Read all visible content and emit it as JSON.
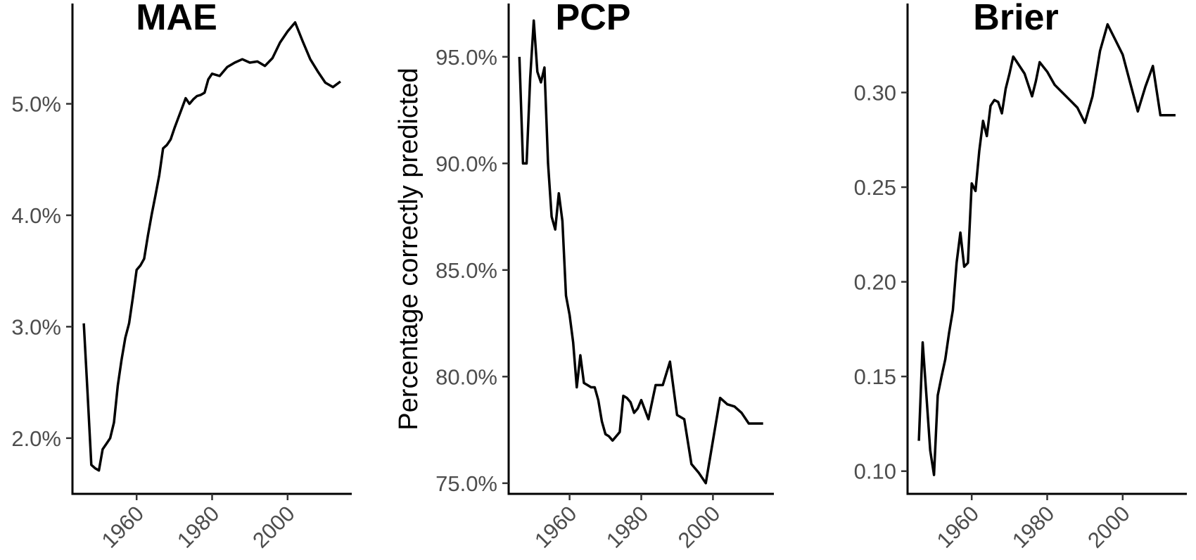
{
  "chart_data": [
    {
      "type": "line",
      "title": "MAE",
      "xlabel": "",
      "ylabel": "",
      "xlim": [
        1943,
        2017
      ],
      "ylim": [
        1.5,
        5.9
      ],
      "x_ticks": [
        1960,
        1980,
        2000
      ],
      "x_tick_labels": [
        "1960",
        "1980",
        "2000"
      ],
      "y_ticks": [
        2,
        3,
        4,
        5
      ],
      "y_tick_labels": [
        "2.0%",
        "3.0%",
        "4.0%",
        "5.0%"
      ],
      "grid": false,
      "series": [
        {
          "x": [
            1946,
            1947,
            1948,
            1949,
            1950,
            1951,
            1952,
            1953,
            1954,
            1955,
            1956,
            1957,
            1958,
            1959,
            1960,
            1961,
            1962,
            1963,
            1964,
            1965,
            1966,
            1967,
            1968,
            1969,
            1970,
            1971,
            1972,
            1973,
            1974,
            1975,
            1976,
            1977,
            1978,
            1979,
            1980,
            1982,
            1984,
            1986,
            1988,
            1990,
            1992,
            1994,
            1996,
            1998,
            2000,
            2002,
            2004,
            2006,
            2008,
            2010,
            2012,
            2014
          ],
          "values": [
            3.03,
            2.4,
            1.76,
            1.73,
            1.71,
            1.9,
            1.95,
            2.0,
            2.14,
            2.47,
            2.7,
            2.9,
            3.03,
            3.26,
            3.51,
            3.55,
            3.61,
            3.82,
            4.01,
            4.18,
            4.36,
            4.6,
            4.63,
            4.68,
            4.78,
            4.87,
            4.96,
            5.05,
            5.0,
            5.04,
            5.07,
            5.08,
            5.1,
            5.22,
            5.27,
            5.25,
            5.33,
            5.37,
            5.4,
            5.37,
            5.38,
            5.34,
            5.41,
            5.55,
            5.65,
            5.73,
            5.56,
            5.4,
            5.29,
            5.19,
            5.15,
            5.2
          ]
        }
      ]
    },
    {
      "type": "line",
      "title": "PCP",
      "xlabel": "",
      "ylabel": "Percentage correctly predicted",
      "xlim": [
        1943,
        2017
      ],
      "ylim": [
        74.5,
        97.5
      ],
      "x_ticks": [
        1960,
        1980,
        2000
      ],
      "x_tick_labels": [
        "1960",
        "1980",
        "2000"
      ],
      "y_ticks": [
        75,
        80,
        85,
        90,
        95
      ],
      "y_tick_labels": [
        "75.0%",
        "80.0%",
        "85.0%",
        "90.0%",
        "95.0%"
      ],
      "grid": false,
      "series": [
        {
          "x": [
            1946,
            1947,
            1948,
            1949,
            1950,
            1951,
            1952,
            1953,
            1954,
            1955,
            1956,
            1957,
            1958,
            1959,
            1960,
            1961,
            1962,
            1963,
            1964,
            1965,
            1966,
            1967,
            1968,
            1969,
            1970,
            1971,
            1972,
            1973,
            1974,
            1975,
            1976,
            1977,
            1978,
            1979,
            1980,
            1982,
            1984,
            1986,
            1988,
            1990,
            1992,
            1994,
            1996,
            1998,
            2000,
            2002,
            2004,
            2006,
            2008,
            2010,
            2012,
            2014
          ],
          "values": [
            95.0,
            90.0,
            90.0,
            94.0,
            96.7,
            94.3,
            93.8,
            94.5,
            90.0,
            87.5,
            86.9,
            88.6,
            87.3,
            83.8,
            82.9,
            81.6,
            79.5,
            81.0,
            79.7,
            79.6,
            79.5,
            79.5,
            78.9,
            77.9,
            77.3,
            77.2,
            77.0,
            77.2,
            77.4,
            79.1,
            79.0,
            78.8,
            78.3,
            78.5,
            78.9,
            78.0,
            79.6,
            79.6,
            80.7,
            78.2,
            78.0,
            75.9,
            75.5,
            75.0,
            77.0,
            79.0,
            78.7,
            78.6,
            78.3,
            77.8,
            77.8,
            77.8
          ]
        }
      ]
    },
    {
      "type": "line",
      "title": "Brier",
      "xlabel": "",
      "ylabel": "",
      "xlim": [
        1943,
        2017
      ],
      "ylim": [
        0.088,
        0.347
      ],
      "x_ticks": [
        1960,
        1980,
        2000
      ],
      "x_tick_labels": [
        "1960",
        "1980",
        "2000"
      ],
      "y_ticks": [
        0.1,
        0.15,
        0.2,
        0.25,
        0.3
      ],
      "y_tick_labels": [
        "0.10",
        "0.15",
        "0.20",
        "0.25",
        "0.30"
      ],
      "grid": false,
      "series": [
        {
          "x": [
            1946,
            1947,
            1948,
            1949,
            1950,
            1951,
            1952,
            1953,
            1954,
            1955,
            1956,
            1957,
            1958,
            1959,
            1960,
            1961,
            1962,
            1963,
            1964,
            1965,
            1966,
            1967,
            1968,
            1969,
            1970,
            1971,
            1972,
            1974,
            1976,
            1977,
            1978,
            1980,
            1982,
            1984,
            1986,
            1988,
            1990,
            1992,
            1994,
            1996,
            1998,
            2000,
            2002,
            2004,
            2006,
            2008,
            2010,
            2012,
            2014
          ],
          "values": [
            0.116,
            0.168,
            0.14,
            0.111,
            0.098,
            0.14,
            0.15,
            0.159,
            0.173,
            0.185,
            0.21,
            0.226,
            0.208,
            0.21,
            0.252,
            0.248,
            0.269,
            0.285,
            0.277,
            0.293,
            0.296,
            0.295,
            0.289,
            0.302,
            0.31,
            0.319,
            0.316,
            0.31,
            0.298,
            0.306,
            0.316,
            0.311,
            0.304,
            0.3,
            0.296,
            0.292,
            0.284,
            0.298,
            0.322,
            0.336,
            0.328,
            0.32,
            0.305,
            0.29,
            0.303,
            0.314,
            0.288,
            0.288,
            0.288
          ]
        }
      ]
    }
  ]
}
